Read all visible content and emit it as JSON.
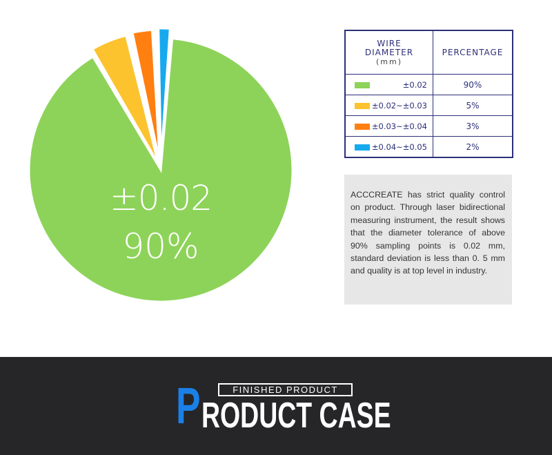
{
  "chart_data": {
    "type": "pie",
    "title": "",
    "center_label": {
      "range": "±0.02",
      "percent": "90%"
    },
    "series": [
      {
        "range": "±0.02",
        "value": 90,
        "label": "90%",
        "color": "#8dd359",
        "exploded": false
      },
      {
        "range": "±0.02~±0.03",
        "value": 5,
        "label": "5%",
        "color": "#fcc32f",
        "exploded": true
      },
      {
        "range": "±0.03~±0.04",
        "value": 3,
        "label": "3%",
        "color": "#ff7f11",
        "exploded": true
      },
      {
        "range": "±0.04~±0.05",
        "value": 2,
        "label": "2%",
        "color": "#17a9ee",
        "exploded": true
      }
    ]
  },
  "table": {
    "header_col1_line1": "WIRE",
    "header_col1_line2": "DIAMETER",
    "header_col1_unit": "(mm)",
    "header_col2": "PERCENTAGE",
    "rows": [
      {
        "range": "±0.02",
        "percent": "90%",
        "color": "#8dd359"
      },
      {
        "range": "±0.02~±0.03",
        "percent": "5%",
        "color": "#fcc32f"
      },
      {
        "range": "±0.03~±0.04",
        "percent": "3%",
        "color": "#ff7f11"
      },
      {
        "range": "±0.04~±0.05",
        "percent": "2%",
        "color": "#17a9ee"
      }
    ]
  },
  "description": "ACCCREATE has strict quality control on product. Through laser bidirectional measuring instrument, the result shows that the diameter tolerance of above 90% sampling points is 0.02 mm, standard deviation is less than 0. 5 mm and quality is at top level in industry.",
  "banner": {
    "tag": "FINISHED PRODUCT",
    "title_first_letter": "P",
    "title_rest": "RODUCT CASE",
    "accent_color": "#1a80e8",
    "background_color": "#262628"
  }
}
